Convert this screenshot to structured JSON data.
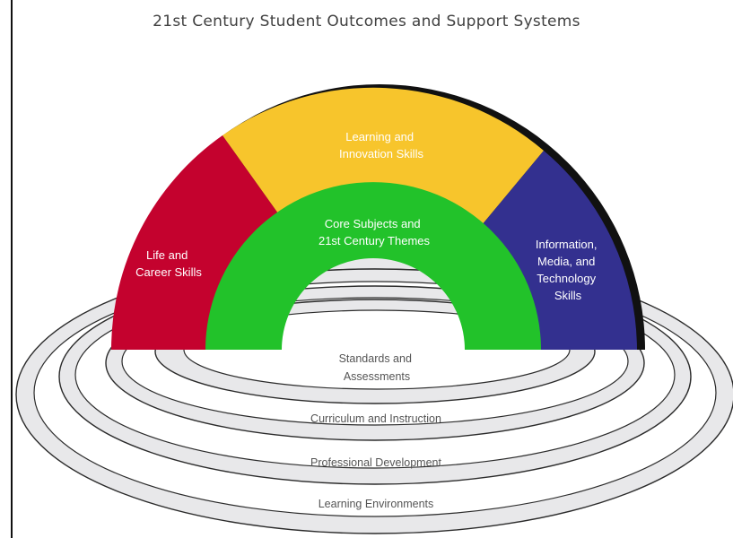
{
  "title": "21st Century Student Outcomes and Support Systems",
  "outcomes": {
    "learning_innovation": {
      "line1": "Learning and",
      "line2": "Innovation Skills",
      "color": "#f7c52c"
    },
    "life_career": {
      "line1": "Life and",
      "line2": "Career Skills",
      "color": "#c4022e"
    },
    "info_media_tech": {
      "line1": "Information,",
      "line2": "Media, and",
      "line3": "Technology",
      "line4": "Skills",
      "color": "#33308f"
    },
    "core_subjects": {
      "line1": "Core Subjects and",
      "line2": "21st Century Themes",
      "color": "#22c22a"
    }
  },
  "support_systems": {
    "standards": {
      "line1": "Standards and",
      "line2": "Assessments"
    },
    "curriculum": "Curriculum and Instruction",
    "professional": "Professional Development",
    "environments": "Learning Environments",
    "ring_color": "#e8e8ea"
  }
}
